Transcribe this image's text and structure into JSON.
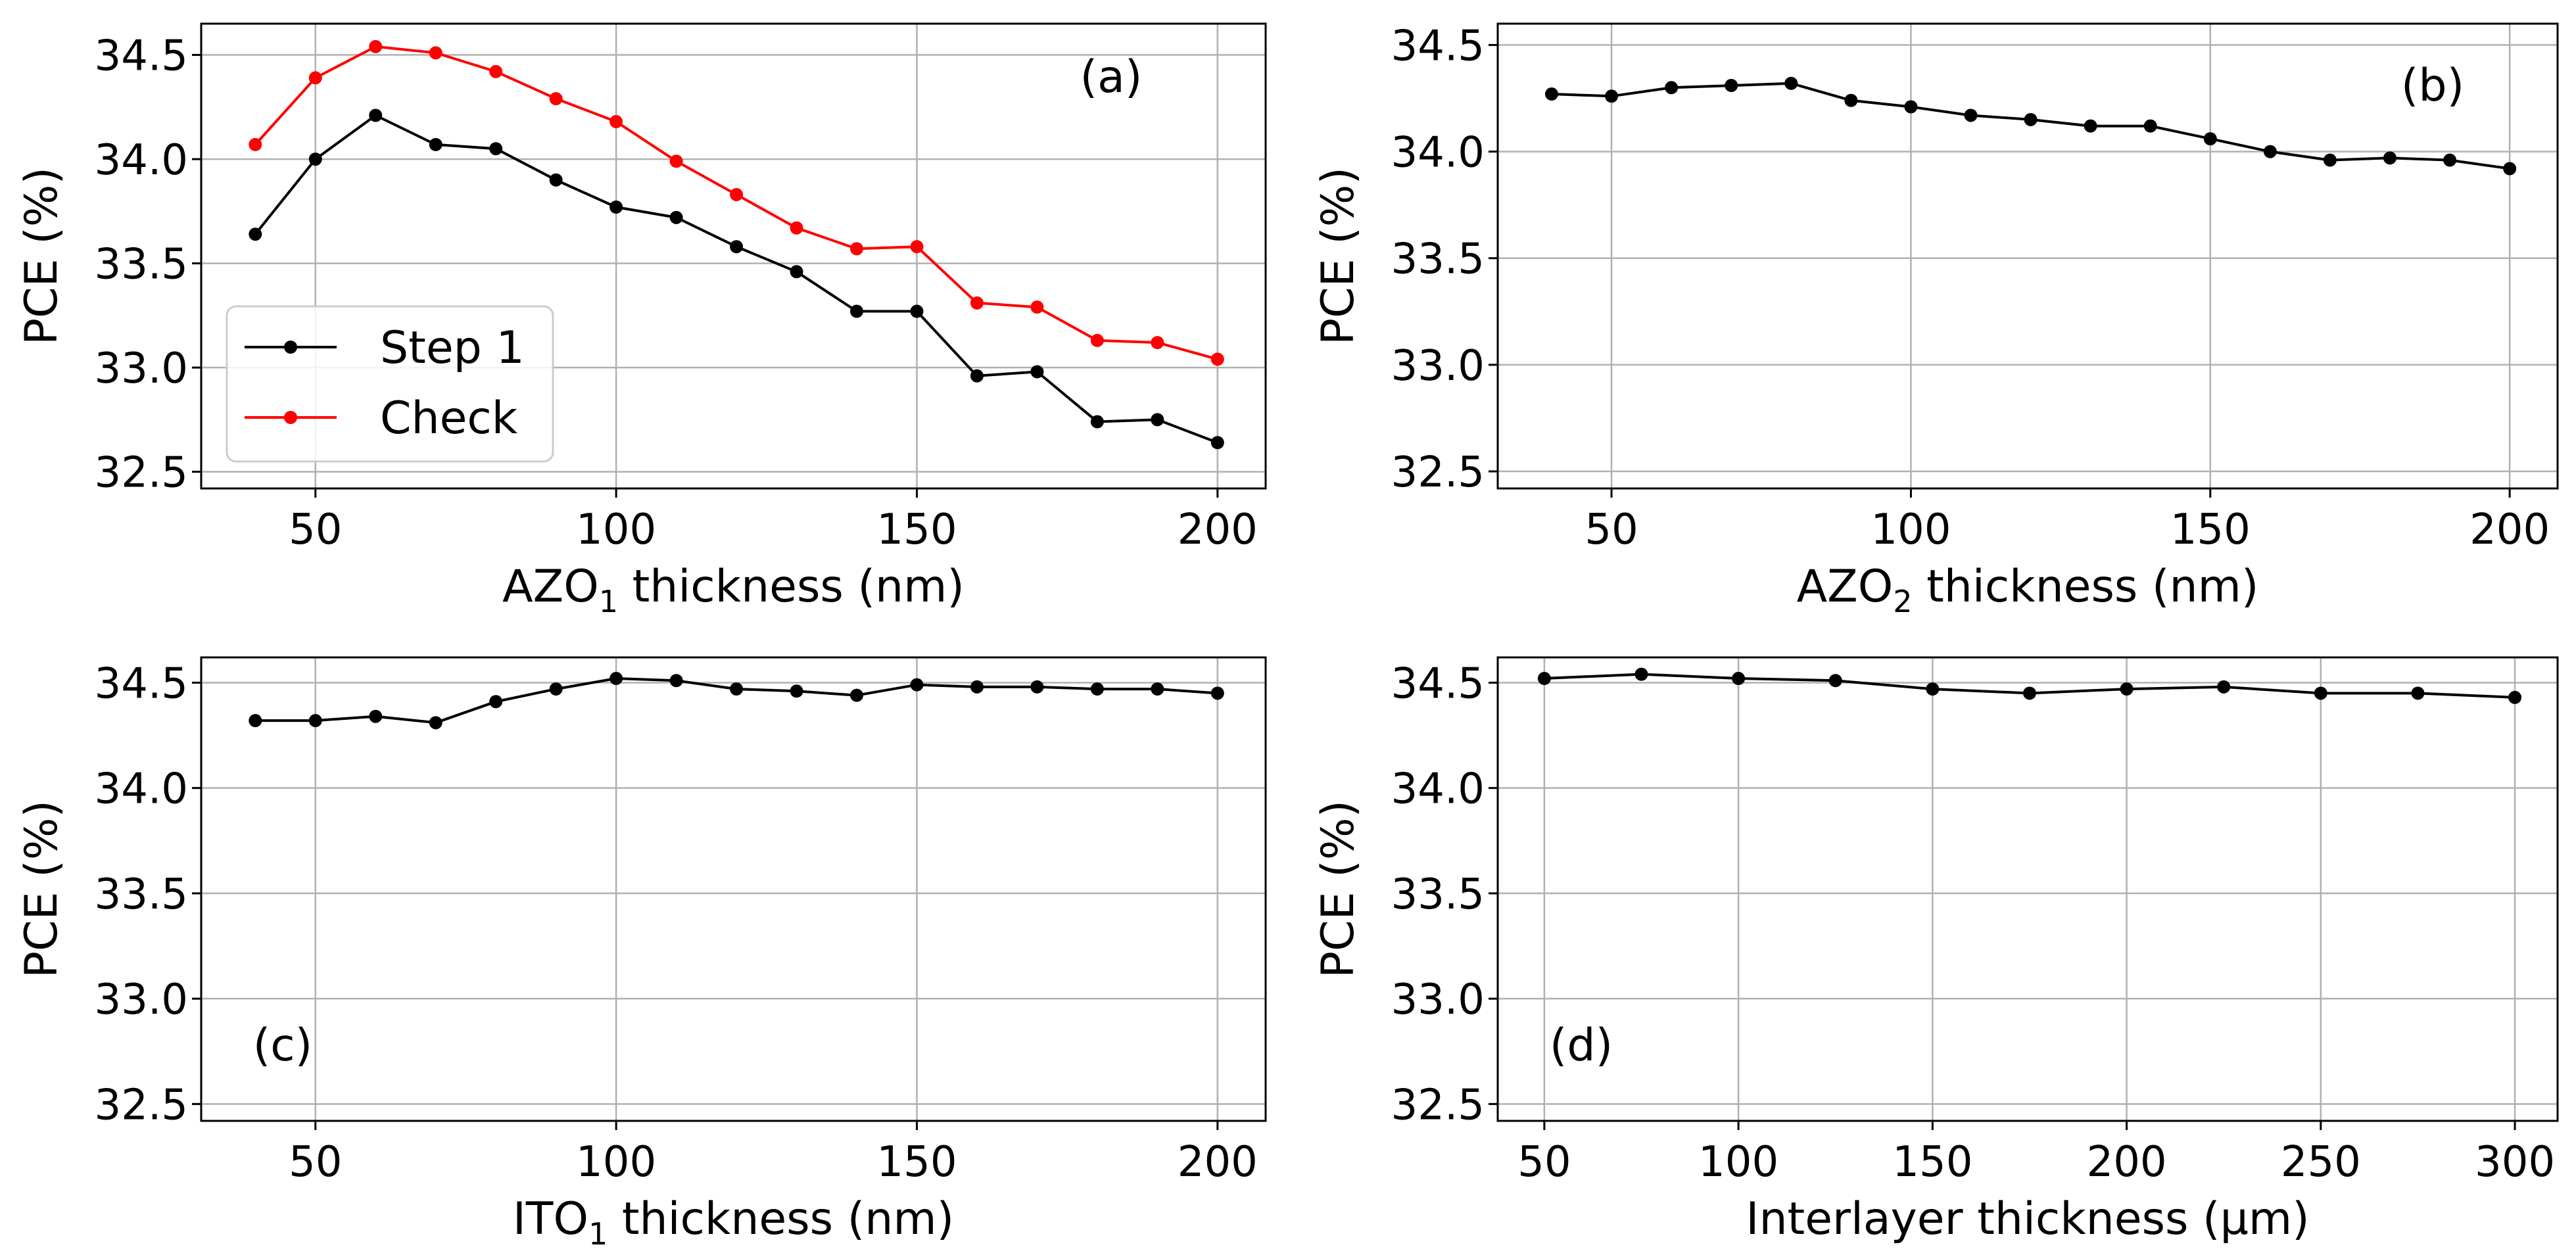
{
  "chart_data": [
    {
      "type": "line",
      "panel_label": "(a)",
      "xlabel": {
        "main": "AZO",
        "sub": "1",
        "rest": " thickness (nm)"
      },
      "ylabel": "PCE (%)",
      "xlim": [
        31,
        208
      ],
      "ylim": [
        32.42,
        34.65
      ],
      "xticks": [
        50,
        100,
        150,
        200
      ],
      "yticks": [
        32.5,
        33.0,
        33.5,
        34.0,
        34.5
      ],
      "ytick_labels": [
        "32.5",
        "33.0",
        "33.5",
        "34.0",
        "34.5"
      ],
      "grid": true,
      "legend": "bottom-left",
      "series": [
        {
          "name": "Step 1",
          "color": "#000000",
          "x": [
            40,
            50,
            60,
            70,
            80,
            90,
            100,
            110,
            120,
            130,
            140,
            150,
            160,
            170,
            180,
            190,
            200
          ],
          "values": [
            33.64,
            34.0,
            34.21,
            34.07,
            34.05,
            33.9,
            33.77,
            33.72,
            33.58,
            33.46,
            33.27,
            33.27,
            32.96,
            32.98,
            32.74,
            32.75,
            32.64
          ]
        },
        {
          "name": "Check",
          "color": "#ff0000",
          "x": [
            40,
            50,
            60,
            70,
            80,
            90,
            100,
            110,
            120,
            130,
            140,
            150,
            160,
            170,
            180,
            190,
            200
          ],
          "values": [
            34.07,
            34.39,
            34.54,
            34.51,
            34.42,
            34.29,
            34.18,
            33.99,
            33.83,
            33.67,
            33.57,
            33.58,
            33.31,
            33.29,
            33.13,
            33.12,
            33.04
          ]
        }
      ]
    },
    {
      "type": "line",
      "panel_label": "(b)",
      "xlabel": {
        "main": "AZO",
        "sub": "2",
        "rest": " thickness (nm)"
      },
      "ylabel": "PCE (%)",
      "xlim": [
        31,
        208
      ],
      "ylim": [
        32.42,
        34.6
      ],
      "xticks": [
        50,
        100,
        150,
        200
      ],
      "yticks": [
        32.5,
        33.0,
        33.5,
        34.0,
        34.5
      ],
      "ytick_labels": [
        "32.5",
        "33.0",
        "33.5",
        "34.0",
        "34.5"
      ],
      "grid": true,
      "series": [
        {
          "name": "",
          "color": "#000000",
          "x": [
            40,
            50,
            60,
            70,
            80,
            90,
            100,
            110,
            120,
            130,
            140,
            150,
            160,
            170,
            180,
            190,
            200
          ],
          "values": [
            34.27,
            34.26,
            34.3,
            34.31,
            34.32,
            34.24,
            34.21,
            34.17,
            34.15,
            34.12,
            34.12,
            34.06,
            34.0,
            33.96,
            33.97,
            33.96,
            33.92
          ]
        }
      ]
    },
    {
      "type": "line",
      "panel_label": "(c)",
      "xlabel": {
        "main": "ITO",
        "sub": "1",
        "rest": " thickness (nm)"
      },
      "ylabel": "PCE (%)",
      "xlim": [
        31,
        208
      ],
      "ylim": [
        32.42,
        34.62
      ],
      "xticks": [
        50,
        100,
        150,
        200
      ],
      "yticks": [
        32.5,
        33.0,
        33.5,
        34.0,
        34.5
      ],
      "ytick_labels": [
        "32.5",
        "33.0",
        "33.5",
        "34.0",
        "34.5"
      ],
      "grid": true,
      "series": [
        {
          "name": "",
          "color": "#000000",
          "x": [
            40,
            50,
            60,
            70,
            80,
            90,
            100,
            110,
            120,
            130,
            140,
            150,
            160,
            170,
            180,
            190,
            200
          ],
          "values": [
            34.32,
            34.32,
            34.34,
            34.31,
            34.41,
            34.47,
            34.52,
            34.51,
            34.47,
            34.46,
            34.44,
            34.49,
            34.48,
            34.48,
            34.47,
            34.47,
            34.45
          ]
        }
      ]
    },
    {
      "type": "line",
      "panel_label": "(d)",
      "xlabel": {
        "main": "Interlayer thickness (μm)",
        "sub": "",
        "rest": ""
      },
      "ylabel": "PCE (%)",
      "xlim": [
        38,
        311
      ],
      "ylim": [
        32.42,
        34.62
      ],
      "xticks": [
        50,
        100,
        150,
        200,
        250,
        300
      ],
      "yticks": [
        32.5,
        33.0,
        33.5,
        34.0,
        34.5
      ],
      "ytick_labels": [
        "32.5",
        "33.0",
        "33.5",
        "34.0",
        "34.5"
      ],
      "grid": true,
      "series": [
        {
          "name": "",
          "color": "#000000",
          "x": [
            50,
            75,
            100,
            125,
            150,
            175,
            200,
            225,
            250,
            275,
            300
          ],
          "values": [
            34.52,
            34.54,
            34.52,
            34.51,
            34.47,
            34.45,
            34.47,
            34.48,
            34.45,
            34.45,
            34.43
          ]
        }
      ]
    }
  ]
}
